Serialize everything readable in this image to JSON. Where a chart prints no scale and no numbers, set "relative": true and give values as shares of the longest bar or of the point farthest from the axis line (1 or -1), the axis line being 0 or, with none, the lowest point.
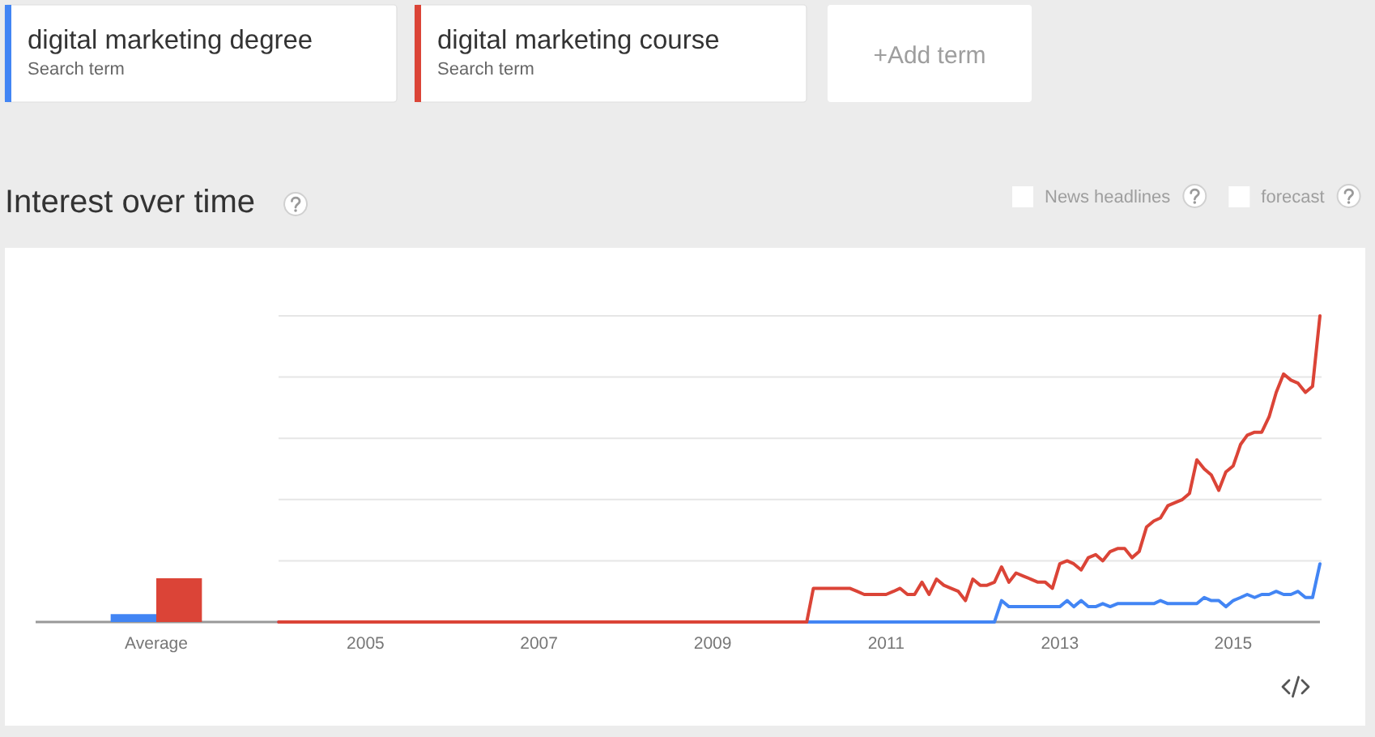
{
  "chart_data": [
    {
      "type": "bar",
      "relative": true,
      "categories": [
        "Average"
      ],
      "series": [
        {
          "color": "#4285f4",
          "values": [
            0.18
          ]
        },
        {
          "color": "#db4437",
          "values": [
            1
          ]
        }
      ]
    },
    {
      "type": "line",
      "title": "Interest over time",
      "relative": true,
      "grid": "y",
      "legend": "top left",
      "xlim": [
        "2004-01",
        "2016-01"
      ],
      "xticks": [
        {
          "value": "2005-01",
          "label": "2005"
        },
        {
          "value": "2007-01",
          "label": "2007"
        },
        {
          "value": "2009-01",
          "label": "2009"
        },
        {
          "value": "2011-01",
          "label": "2011"
        },
        {
          "value": "2013-01",
          "label": "2013"
        },
        {
          "value": "2015-01",
          "label": "2015"
        }
      ],
      "series": [
        {
          "name": "digital marketing degree",
          "color": "#4285f4",
          "x": [
            "2004-01",
            "2012-04",
            "2012-05",
            "2012-06",
            "2012-07",
            "2012-08",
            "2012-09",
            "2012-10",
            "2012-11",
            "2012-12",
            "2013-01",
            "2013-02",
            "2013-03",
            "2013-04",
            "2013-05",
            "2013-06",
            "2013-07",
            "2013-08",
            "2013-09",
            "2013-10",
            "2013-11",
            "2013-12",
            "2014-01",
            "2014-02",
            "2014-03",
            "2014-04",
            "2014-05",
            "2014-06",
            "2014-07",
            "2014-08",
            "2014-09",
            "2014-10",
            "2014-11",
            "2014-12",
            "2015-01",
            "2015-02",
            "2015-03",
            "2015-04",
            "2015-05",
            "2015-06",
            "2015-07",
            "2015-08",
            "2015-09",
            "2015-10",
            "2015-11",
            "2015-12",
            "2016-01"
          ],
          "values": [
            0,
            0,
            0.07,
            0.05,
            0.05,
            0.05,
            0.05,
            0.05,
            0.05,
            0.05,
            0.05,
            0.07,
            0.05,
            0.07,
            0.05,
            0.05,
            0.06,
            0.05,
            0.06,
            0.06,
            0.06,
            0.06,
            0.06,
            0.06,
            0.07,
            0.06,
            0.06,
            0.06,
            0.06,
            0.06,
            0.08,
            0.07,
            0.07,
            0.05,
            0.07,
            0.08,
            0.09,
            0.08,
            0.09,
            0.09,
            0.1,
            0.09,
            0.09,
            0.1,
            0.08,
            0.08,
            0.19
          ]
        },
        {
          "name": "digital marketing course",
          "color": "#db4437",
          "x": [
            "2004-01",
            "2010-02",
            "2010-03",
            "2010-04",
            "2010-05",
            "2010-06",
            "2010-07",
            "2010-08",
            "2010-09",
            "2010-10",
            "2010-11",
            "2010-12",
            "2011-01",
            "2011-02",
            "2011-03",
            "2011-04",
            "2011-05",
            "2011-06",
            "2011-07",
            "2011-08",
            "2011-09",
            "2011-10",
            "2011-11",
            "2011-12",
            "2012-01",
            "2012-02",
            "2012-03",
            "2012-04",
            "2012-05",
            "2012-06",
            "2012-07",
            "2012-08",
            "2012-09",
            "2012-10",
            "2012-11",
            "2012-12",
            "2013-01",
            "2013-02",
            "2013-03",
            "2013-04",
            "2013-05",
            "2013-06",
            "2013-07",
            "2013-08",
            "2013-09",
            "2013-10",
            "2013-11",
            "2013-12",
            "2014-01",
            "2014-02",
            "2014-03",
            "2014-04",
            "2014-05",
            "2014-06",
            "2014-07",
            "2014-08",
            "2014-09",
            "2014-10",
            "2014-11",
            "2014-12",
            "2015-01",
            "2015-02",
            "2015-03",
            "2015-04",
            "2015-05",
            "2015-06",
            "2015-07",
            "2015-08",
            "2015-09",
            "2015-10",
            "2015-11",
            "2015-12",
            "2016-01"
          ],
          "values": [
            0,
            0,
            0.11,
            0.11,
            0.11,
            0.11,
            0.11,
            0.11,
            0.1,
            0.09,
            0.09,
            0.09,
            0.09,
            0.1,
            0.11,
            0.09,
            0.09,
            0.13,
            0.09,
            0.14,
            0.12,
            0.11,
            0.1,
            0.07,
            0.14,
            0.12,
            0.12,
            0.13,
            0.18,
            0.13,
            0.16,
            0.15,
            0.14,
            0.13,
            0.13,
            0.11,
            0.19,
            0.2,
            0.19,
            0.17,
            0.21,
            0.22,
            0.2,
            0.23,
            0.24,
            0.24,
            0.21,
            0.23,
            0.31,
            0.33,
            0.34,
            0.38,
            0.39,
            0.4,
            0.42,
            0.53,
            0.5,
            0.48,
            0.43,
            0.49,
            0.51,
            0.58,
            0.61,
            0.62,
            0.62,
            0.67,
            0.75,
            0.81,
            0.79,
            0.78,
            0.75,
            0.77,
            1
          ]
        }
      ],
      "annotations": [
        "Search term",
        "Search term",
        "+Add term",
        "News headlines",
        "forecast"
      ]
    }
  ]
}
